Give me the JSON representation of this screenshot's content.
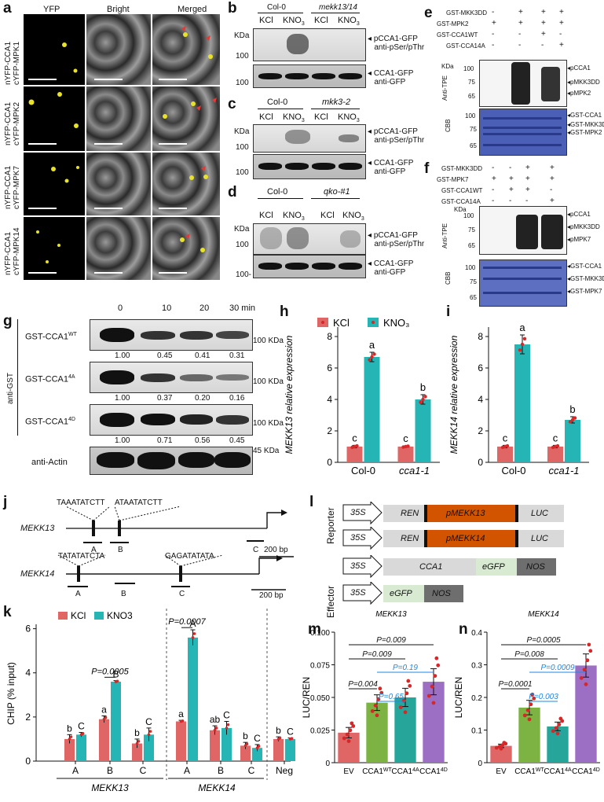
{
  "panels": {
    "a": "a",
    "b": "b",
    "c": "c",
    "d": "d",
    "e": "e",
    "f": "f",
    "g": "g",
    "h": "h",
    "i": "i",
    "j": "j",
    "k": "k",
    "l": "l",
    "m": "m",
    "n": "n"
  },
  "a": {
    "cols": [
      "YFP",
      "Bright",
      "Merged"
    ],
    "rows": [
      {
        "l1": "nYFP-CCA1",
        "l2": "cYFP-MPK1"
      },
      {
        "l1": "nYFP-CCA1",
        "l2": "cYFP-MPK2"
      },
      {
        "l1": "nYFP-CCA1",
        "l2": "cYFP-MPK7"
      },
      {
        "l1": "nYFP-CCA1",
        "l2": "cYFP-MPK14"
      }
    ]
  },
  "b": {
    "geno1": "Col-0",
    "geno2": "mekk13/14",
    "lanes": [
      "KCl",
      "KNO3",
      "KCl",
      "KNO3"
    ],
    "kda": "KDa",
    "m1": "100",
    "m2": "100",
    "ann1a": "pCCA1-GFP",
    "ann1b": "anti-pSer/pThr",
    "ann2a": "CCA1-GFP",
    "ann2b": "anti-GFP"
  },
  "c": {
    "geno1": "Col-0",
    "geno2": "mkk3-2",
    "lanes": [
      "KCl",
      "KNO3",
      "KCl",
      "KNO3"
    ],
    "kda": "KDa",
    "m1": "100",
    "m2": "100",
    "ann1a": "pCCA1-GFP",
    "ann1b": "anti-pSer/pThr",
    "ann2a": "CCA1-GFP",
    "ann2b": "anti-GFP"
  },
  "d": {
    "geno1": "Col-0",
    "geno2": "qko-#1",
    "lanes": [
      "KCl",
      "KNO3",
      "KCl",
      "KNO3"
    ],
    "kda": "KDa",
    "m1": "100",
    "m2": "100-",
    "ann1a": "pCCA1-GFP",
    "ann1b": "anti-pSer/pThr",
    "ann2a": "CCA1-GFP",
    "ann2b": "anti-GFP"
  },
  "e": {
    "rows": [
      {
        "name": "GST-MKK3DD",
        "v": [
          "-",
          "+",
          "+",
          "+"
        ]
      },
      {
        "name": "GST-MPK2",
        "v": [
          "+",
          "+",
          "+",
          "+"
        ]
      },
      {
        "name": "GST-CCA1WT",
        "v": [
          "-",
          "-",
          "+",
          "-"
        ]
      },
      {
        "name": "GST-CCA14A",
        "v": [
          "-",
          "-",
          "-",
          "+"
        ]
      }
    ],
    "kda": "KDa",
    "ab": "Anti-TPE",
    "cbb": "CBB",
    "m": [
      "100",
      "75",
      "65"
    ],
    "gm": [
      "100",
      "75",
      "65"
    ],
    "ann": [
      "pCCA1",
      "pMKK3DD",
      "pMPK2"
    ],
    "gann": [
      "GST-CCA1",
      "GST-MKK3DD",
      "GST-MPK2"
    ]
  },
  "f": {
    "rows": [
      {
        "name": "GST-MKK3DD",
        "v": [
          "-",
          "-",
          "+",
          "+"
        ]
      },
      {
        "name": "GST-MPK7",
        "v": [
          "+",
          "+",
          "+",
          "+"
        ]
      },
      {
        "name": "GST-CCA1WT",
        "v": [
          "-",
          "+",
          "+",
          "-"
        ]
      },
      {
        "name": "GST-CCA14A",
        "v": [
          "-",
          "-",
          "-",
          "+"
        ]
      }
    ],
    "kda": "KDa",
    "ab": "Anti-TPE",
    "cbb": "CBB",
    "m": [
      "100",
      "75",
      "65"
    ],
    "gm": [
      "100",
      "75",
      "65"
    ],
    "ann": [
      "pCCA1",
      "pMKK3DD",
      "pMPK7"
    ],
    "gann": [
      "GST-CCA1",
      "GST-MKK3DD",
      "GST-MPK7"
    ]
  },
  "g": {
    "times": [
      "0",
      "10",
      "20",
      "30 min"
    ],
    "side": "anti-GST",
    "rows": [
      {
        "name": "GST-CCA1WT",
        "vals": [
          "1.00",
          "0.45",
          "0.41",
          "0.31"
        ],
        "mark": "100 KDa"
      },
      {
        "name": "GST-CCA14A",
        "vals": [
          "1.00",
          "0.37",
          "0.20",
          "0.16"
        ],
        "mark": "100 KDa"
      },
      {
        "name": "GST-CCA14D",
        "vals": [
          "1.00",
          "0.71",
          "0.56",
          "0.45"
        ],
        "mark": "100 KDa"
      }
    ],
    "actin": "anti-Actin",
    "actinMark": "45 KDa"
  },
  "chart_data": [
    {
      "panel": "h",
      "type": "bar",
      "categories": [
        "Col-0",
        "cca1-1"
      ],
      "series": [
        {
          "name": "KCl",
          "values": [
            1.0,
            1.0
          ],
          "err": [
            0.08,
            0.05
          ]
        },
        {
          "name": "KNO₃",
          "values": [
            6.7,
            4.0
          ],
          "err": [
            0.3,
            0.3
          ]
        }
      ],
      "letters": [
        [
          "c",
          "a"
        ],
        [
          "c",
          "b"
        ]
      ],
      "xlabel": "",
      "ylabel": "MEKK13 relative expression",
      "ylim": [
        0,
        8.6
      ],
      "yticks": [
        0,
        2,
        4,
        6,
        8
      ],
      "legend": "top"
    },
    {
      "panel": "i",
      "type": "bar",
      "categories": [
        "Col-0",
        "cca1-1"
      ],
      "series": [
        {
          "name": "KCl",
          "values": [
            1.0,
            1.0
          ],
          "err": [
            0.08,
            0.08
          ]
        },
        {
          "name": "KNO₃",
          "values": [
            7.5,
            2.7
          ],
          "err": [
            0.6,
            0.2
          ]
        }
      ],
      "letters": [
        [
          "c",
          "a"
        ],
        [
          "c",
          "b"
        ]
      ],
      "xlabel": "",
      "ylabel": "MEKK14 relative expression",
      "ylim": [
        0,
        8.6
      ],
      "yticks": [
        0,
        2,
        4,
        6,
        8
      ]
    },
    {
      "panel": "k",
      "type": "bar",
      "groups": [
        "MEKK13",
        "MEKK14"
      ],
      "categories": [
        "A",
        "B",
        "C",
        "A",
        "B",
        "C",
        "Neg"
      ],
      "series": [
        {
          "name": "KCl",
          "values": [
            1.0,
            1.9,
            0.8,
            1.8,
            1.4,
            0.7,
            1.0
          ],
          "err": [
            0.2,
            0.15,
            0.2,
            0.05,
            0.2,
            0.15,
            0.1
          ]
        },
        {
          "name": "KNO3",
          "values": [
            1.2,
            3.6,
            1.2,
            5.6,
            1.5,
            0.6,
            1.0
          ],
          "err": [
            0.1,
            0.05,
            0.3,
            0.35,
            0.3,
            0.15,
            0.05
          ]
        }
      ],
      "letters": [
        [
          "b",
          "C"
        ],
        [
          "a",
          "B"
        ],
        [
          "b",
          "C"
        ],
        [
          "a",
          "A"
        ],
        [
          "ab",
          "C"
        ],
        [
          "b",
          "C"
        ],
        [
          "b",
          "C"
        ]
      ],
      "pvals": [
        "P=0.0005",
        "P=0.0007"
      ],
      "ylabel": "CHIP (% input)",
      "ylim": [
        0,
        6.2
      ],
      "yticks": [
        0,
        2,
        4,
        6
      ],
      "legend": "top-left"
    },
    {
      "panel": "m",
      "type": "bar",
      "title": "MEKK13",
      "categories": [
        "EV",
        "CCA1WT",
        "CCA14A",
        "CCA14D"
      ],
      "values": [
        0.023,
        0.046,
        0.05,
        0.062
      ],
      "err": [
        0.004,
        0.006,
        0.007,
        0.01
      ],
      "colors": [
        "#e06666",
        "#7cb342",
        "#26a69a",
        "#9c6fc4"
      ],
      "pvals": [
        {
          "t": "P=0.009",
          "c": "#111"
        },
        {
          "t": "P=0.009",
          "c": "#111"
        },
        {
          "t": "P=0.19",
          "c": "#1e88e5"
        },
        {
          "t": "P=0.004",
          "c": "#111"
        },
        {
          "t": "P=0.65",
          "c": "#1e88e5"
        }
      ],
      "ylabel": "LUC/REN",
      "ylim": [
        0,
        0.1
      ],
      "yticks": [
        "0",
        "0.025",
        "0.050",
        "0.075",
        "0.100"
      ]
    },
    {
      "panel": "n",
      "type": "bar",
      "title": "MEKK14",
      "categories": [
        "EV",
        "CCA1WT",
        "CCA14A",
        "CCA14D"
      ],
      "values": [
        0.058,
        0.19,
        0.125,
        0.335
      ],
      "err": [
        0.006,
        0.025,
        0.015,
        0.04
      ],
      "colors": [
        "#e06666",
        "#7cb342",
        "#26a69a",
        "#9c6fc4"
      ],
      "pvals": [
        {
          "t": "P=0.0005",
          "c": "#111"
        },
        {
          "t": "P=0.008",
          "c": "#111"
        },
        {
          "t": "P=0.0009",
          "c": "#1e88e5"
        },
        {
          "t": "P=0.0001",
          "c": "#111"
        },
        {
          "t": "P=0.003",
          "c": "#1e88e5"
        }
      ],
      "ylabel": "LUC/REN",
      "ylim": [
        0,
        0.45
      ],
      "yticks": [
        "0",
        "0.1",
        "0.2",
        "0.3",
        "0.4"
      ]
    }
  ],
  "j": {
    "g1": "MEKK13",
    "g2": "MEKK14",
    "s1": "TAAATATCTT",
    "s2": "ATAATATCTT",
    "s3": "TATATATCTA",
    "s4": "GAGATATATA",
    "bp": "200 bp",
    "A": "A",
    "B": "B",
    "C": "C"
  },
  "l": {
    "reporter": "Reporter",
    "effector": "Effector",
    "r1": [
      "35S",
      "REN",
      "pMEKK13",
      "LUC"
    ],
    "r2": [
      "35S",
      "REN",
      "pMEKK14",
      "LUC"
    ],
    "e1": [
      "35S",
      "CCA1",
      "eGFP",
      "NOS"
    ],
    "e2": [
      "35S",
      "eGFP",
      "NOS"
    ]
  },
  "colors": {
    "kcl": "#e06666",
    "kno3": "#26b5b5",
    "orange": "#d35400",
    "green": "#d8ead2",
    "nos": "#6e6e6e"
  }
}
